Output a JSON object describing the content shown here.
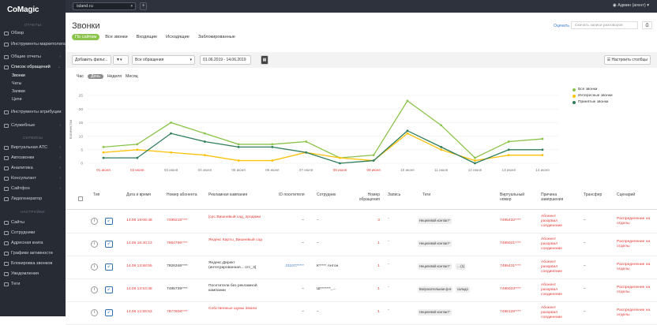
{
  "sidebar": {
    "logo": "CoMagic",
    "sec_reports": "ОТЧЕТЫ",
    "sec_services": "СЕРВИСЫ",
    "sec_settings": "НАСТРОЙКИ",
    "items": [
      {
        "label": "Обзор"
      },
      {
        "label": "Инструменты маркетолога"
      },
      {
        "label": "Общие отчеты"
      },
      {
        "label": "Список обращений"
      },
      {
        "label": "Инструменты атрибуции"
      },
      {
        "label": "Служебные"
      },
      {
        "label": "Виртуальная АТС"
      },
      {
        "label": "Автозвонки"
      },
      {
        "label": "Аналитика"
      },
      {
        "label": "Консультант"
      },
      {
        "label": "Сайтфон"
      },
      {
        "label": "Лидогенератор"
      },
      {
        "label": "Сайты"
      },
      {
        "label": "Сотрудники"
      },
      {
        "label": "Адресная книга"
      },
      {
        "label": "Графики активности"
      },
      {
        "label": "Блокировка звонков"
      },
      {
        "label": "Уведомления"
      },
      {
        "label": "Теги"
      }
    ],
    "subitems": [
      "Звонки",
      "Чаты",
      "Заявки",
      "Цели"
    ]
  },
  "topbar": {
    "site": "island.ru",
    "user": "Админ (агент)"
  },
  "page": {
    "title": "Звонки",
    "tabs": [
      "По сайтам",
      "Все звонки",
      "Входящие",
      "Исходящие",
      "Заблокированные"
    ],
    "rate": "Оценить",
    "download": "Скачать записи разговоров"
  },
  "filter": {
    "add": "Добавить фильт...",
    "type": "Все обращения",
    "dates": "01.06.2019 - 14.06.2019",
    "config": "Настроить столбцы"
  },
  "granularity": [
    "Час",
    "День",
    "Неделя",
    "Месяц"
  ],
  "chart_data": {
    "type": "line",
    "ylabel": "Количество",
    "ylim": [
      0,
      25
    ],
    "yticks": [
      0,
      5,
      10,
      15,
      20,
      25
    ],
    "categories": [
      "01 июня",
      "02 июня",
      "03 июня",
      "04 июня",
      "05 июня",
      "06 июня",
      "07 июня",
      "08 июня",
      "09 июня",
      "10 июня",
      "11 июня",
      "12 июня",
      "13 июня",
      "14 июня"
    ],
    "weekend": [
      0,
      1,
      7,
      8
    ],
    "series": [
      {
        "name": "Все звонки",
        "color": "#8bc34a",
        "values": [
          6,
          7,
          15,
          11,
          7,
          7,
          8,
          2,
          3,
          23,
          14,
          2,
          8,
          9
        ]
      },
      {
        "name": "Интересные звонки",
        "color": "#ffc107",
        "values": [
          4,
          5,
          4,
          3,
          1,
          1,
          4,
          2,
          1,
          11,
          5,
          1,
          3,
          3
        ]
      },
      {
        "name": "Принятые звонки",
        "color": "#2e7d5b",
        "values": [
          2,
          2,
          11,
          8,
          6,
          6,
          4,
          0,
          1,
          12,
          6,
          0,
          5,
          5
        ]
      }
    ]
  },
  "table": {
    "headers": [
      "Тип",
      "Дата и время",
      "Номер абонента",
      "Рекламная кампания",
      "ID посетителя",
      "Сотрудник",
      "Номер обращения",
      "Запись",
      "Теги",
      "Виртуальный номер",
      "Причина завершения",
      "Трансфер",
      "Сценарий"
    ],
    "rows": [
      {
        "date": "14.06 19:08:48",
        "number": "7499215****",
        "campaign": "[cpc.Вишневый сад_продажи",
        "visitor": "–",
        "employee": "–",
        "count": "3",
        "rec": "-",
        "tags": [
          "Нецелевой контакт*"
        ],
        "virt": "7495432****",
        "reason": "Абонент разорвал соединение",
        "transfer": "–",
        "scenario": "Распределение на отделы"
      },
      {
        "date": "14.06 16:40:13",
        "number": "7964766****",
        "campaign": "Яндекс Карты_Вишневый сад",
        "visitor": "–",
        "employee": "–",
        "count": "1",
        "rec": "-",
        "tags": [
          "Нецелевой контакт*"
        ],
        "virt": "7495021****",
        "reason": "Абонент разорвал соединение",
        "transfer": "–",
        "scenario": "Распределение на отделы"
      },
      {
        "date": "14.06 13:58:55",
        "number": "7926346****",
        "campaign": "Яндекс.Директ (интегрированная... отс_3]",
        "visitor": "211077****",
        "employee": "К***** Антон",
        "count": "1",
        "rec": "-",
        "tags": [
          "Нецелевой контакт*",
          "…(1)"
        ],
        "virt": "7495431****",
        "reason": "Абонент разорвал соединение",
        "transfer": "–",
        "scenario": "Распределение на отделы"
      },
      {
        "date": "14.06 13:53:48",
        "number": "7495739****",
        "campaign": "Посетители без рекламной кампании",
        "visitor": "–",
        "employee": "Ш*******_...",
        "count": "1",
        "rec": "-",
        "tags": [
          "Вопросительная ф-я",
          "сальдо"
        ],
        "virt": "7495023****",
        "reason": "Абонент разорвал соединение",
        "transfer": "–",
        "scenario": "Распределение на отделы"
      },
      {
        "date": "14.06 12:59:53",
        "number": "7977808****",
        "campaign": "Собственные шумы Земли",
        "visitor": "–",
        "employee": "–",
        "count": "1",
        "rec": "-",
        "tags": [
          "Нецелевой контакт*"
        ],
        "virt": "7496125****",
        "reason": "Абонент разорвал соединение",
        "transfer": "–",
        "scenario": "Распределение на отделы"
      }
    ]
  }
}
